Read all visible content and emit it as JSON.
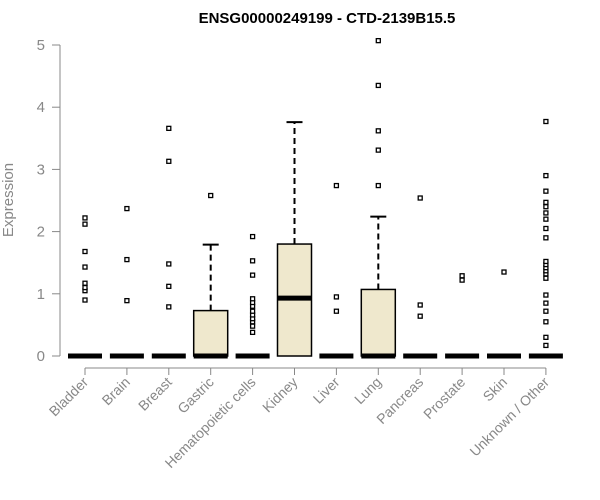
{
  "chart_data": {
    "type": "box",
    "title": "ENSG00000249199 - CTD-2139B15.5",
    "xlabel": "",
    "ylabel": "Expression",
    "ylim": [
      0,
      5.1
    ],
    "yticks": [
      0,
      1,
      2,
      3,
      4,
      5
    ],
    "grid": false,
    "legend": "none",
    "colors": {
      "box_fill": "#efe8cd",
      "stroke": "#000000",
      "axis": "#888888"
    },
    "categories": [
      "Bladder",
      "Brain",
      "Breast",
      "Gastric",
      "Hematopoietic cells",
      "Kidney",
      "Liver",
      "Lung",
      "Pancreas",
      "Prostate",
      "Skin",
      "Unknown / Other"
    ],
    "boxes": [
      {
        "category": "Bladder",
        "q1": 0,
        "median": 0,
        "q3": 0,
        "whisker_low": 0,
        "whisker_high": 0,
        "outliers": [
          0.9,
          1.05,
          1.1,
          1.17,
          1.43,
          1.68,
          2.12,
          2.22
        ]
      },
      {
        "category": "Brain",
        "q1": 0,
        "median": 0,
        "q3": 0,
        "whisker_low": 0,
        "whisker_high": 0,
        "outliers": [
          0.89,
          1.55,
          2.37
        ]
      },
      {
        "category": "Breast",
        "q1": 0,
        "median": 0,
        "q3": 0,
        "whisker_low": 0,
        "whisker_high": 0,
        "outliers": [
          0.79,
          1.12,
          1.48,
          3.13,
          3.66
        ]
      },
      {
        "category": "Gastric",
        "q1": 0,
        "median": 0,
        "q3": 0.73,
        "whisker_low": 0,
        "whisker_high": 1.79,
        "outliers": [
          2.58
        ]
      },
      {
        "category": "Hematopoietic cells",
        "q1": 0,
        "median": 0,
        "q3": 0,
        "whisker_low": 0,
        "whisker_high": 0,
        "outliers": [
          0.38,
          0.48,
          0.55,
          0.6,
          0.66,
          0.72,
          0.8,
          0.86,
          0.92,
          1.3,
          1.53,
          1.92
        ]
      },
      {
        "category": "Kidney",
        "q1": 0,
        "median": 0.93,
        "q3": 1.8,
        "whisker_low": 0,
        "whisker_high": 3.76,
        "outliers": []
      },
      {
        "category": "Liver",
        "q1": 0,
        "median": 0,
        "q3": 0,
        "whisker_low": 0,
        "whisker_high": 0,
        "outliers": [
          0.72,
          0.95,
          2.74
        ]
      },
      {
        "category": "Lung",
        "q1": 0,
        "median": 0,
        "q3": 1.07,
        "whisker_low": 0,
        "whisker_high": 2.24,
        "outliers": [
          2.74,
          3.31,
          3.62,
          4.35,
          5.07
        ]
      },
      {
        "category": "Pancreas",
        "q1": 0,
        "median": 0,
        "q3": 0,
        "whisker_low": 0,
        "whisker_high": 0,
        "outliers": [
          0.64,
          0.82,
          2.54
        ]
      },
      {
        "category": "Prostate",
        "q1": 0,
        "median": 0,
        "q3": 0,
        "whisker_low": 0,
        "whisker_high": 0,
        "outliers": [
          1.22,
          1.29
        ]
      },
      {
        "category": "Skin",
        "q1": 0,
        "median": 0,
        "q3": 0,
        "whisker_low": 0,
        "whisker_high": 0,
        "outliers": [
          1.35
        ]
      },
      {
        "category": "Unknown / Other",
        "q1": 0,
        "median": 0,
        "q3": 0,
        "whisker_low": 0,
        "whisker_high": 0,
        "outliers": [
          0.17,
          0.3,
          0.55,
          0.72,
          0.85,
          0.98,
          1.25,
          1.32,
          1.37,
          1.42,
          1.47,
          1.52,
          1.9,
          2.05,
          2.2,
          2.3,
          2.4,
          2.47,
          2.65,
          2.9,
          3.77
        ]
      }
    ]
  }
}
